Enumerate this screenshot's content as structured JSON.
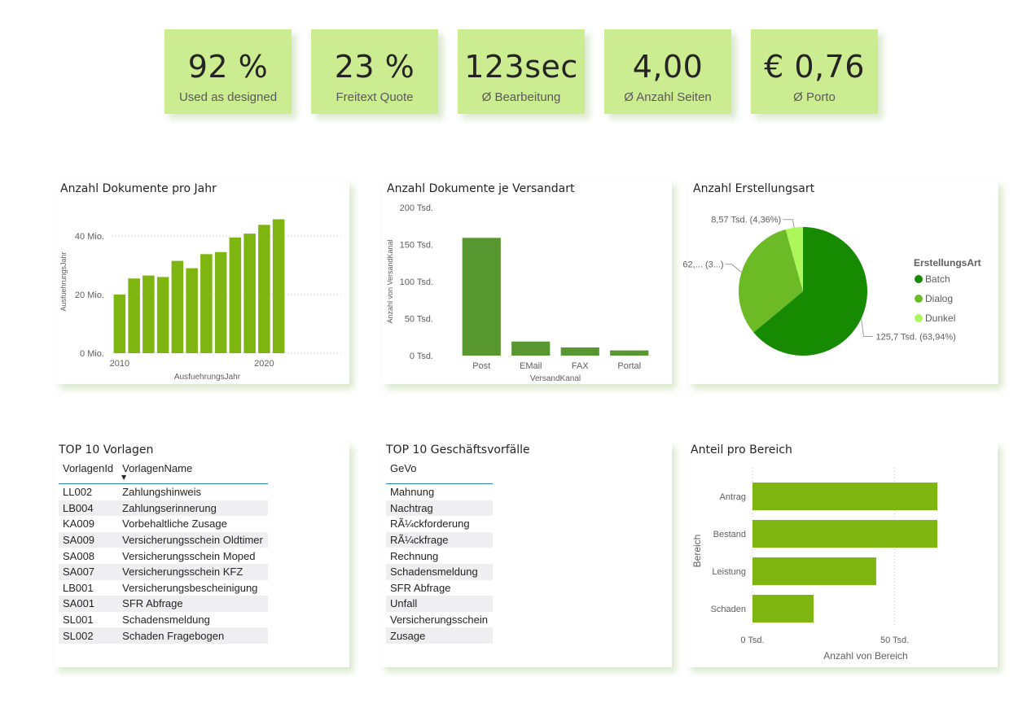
{
  "kpis": [
    {
      "value": "92 %",
      "label": "Used as designed"
    },
    {
      "value": "23 %",
      "label": "Freitext Quote"
    },
    {
      "value": "123sec",
      "label": "Ø Bearbeitung"
    },
    {
      "value": "4,00",
      "label": "Ø Anzahl Seiten"
    },
    {
      "value": "€ 0,76",
      "label": "Ø Porto"
    }
  ],
  "colors": {
    "bar_year": "#7eb510",
    "bar_versand": "#58962f",
    "pie_batch": "#168a00",
    "pie_dialog": "#6cba26",
    "pie_dunkel": "#acf55a",
    "bar_bereich": "#7eb510",
    "kpi_bg": "#ccec91"
  },
  "chart_data": [
    {
      "type": "bar",
      "title": "Anzahl Dokumente pro Jahr",
      "xlabel": "AusfuehrungsJahr",
      "ylabel": "AusfuehrungsJahr",
      "x": [
        2010,
        2011,
        2012,
        2013,
        2014,
        2015,
        2016,
        2017,
        2018,
        2019,
        2020,
        2021
      ],
      "values": [
        20,
        25.5,
        26.5,
        26,
        31.5,
        29,
        33.8,
        34.5,
        39.5,
        40.8,
        43.8,
        45.7
      ],
      "ylim": [
        0,
        50
      ],
      "yticks": [
        {
          "v": 0,
          "label": "0 Mio."
        },
        {
          "v": 20,
          "label": "20 Mio."
        },
        {
          "v": 40,
          "label": "40 Mio."
        }
      ],
      "xticks": [
        {
          "v": 2010,
          "label": "2010"
        },
        {
          "v": 2020,
          "label": "2020"
        }
      ],
      "grid": true
    },
    {
      "type": "bar",
      "title": "Anzahl Dokumente je Versandart",
      "xlabel": "VersandKanal",
      "ylabel": "Anzahl von VersandKanal",
      "categories": [
        "Post",
        "EMail",
        "FAX",
        "Portal"
      ],
      "values": [
        159,
        19,
        11,
        7
      ],
      "ylim": [
        0,
        200
      ],
      "yticks": [
        {
          "v": 0,
          "label": "0 Tsd."
        },
        {
          "v": 50,
          "label": "50 Tsd."
        },
        {
          "v": 100,
          "label": "100 Tsd."
        },
        {
          "v": 150,
          "label": "150 Tsd."
        },
        {
          "v": 200,
          "label": "200 Tsd."
        }
      ],
      "grid": false
    },
    {
      "type": "pie",
      "title": "Anzahl Erstellungsart",
      "legend_title": "ErstellungsArt",
      "legend_position": "right",
      "slices": [
        {
          "name": "Batch",
          "value": 125.7,
          "percent": 63.94,
          "label": "125,7 Tsd. (63,94%)"
        },
        {
          "name": "Dialog",
          "value": 62.3,
          "percent": 31.7,
          "label": "62,... (3...)"
        },
        {
          "name": "Dunkel",
          "value": 8.57,
          "percent": 4.36,
          "label": "8,57 Tsd. (4,36%)"
        }
      ]
    },
    {
      "type": "bar",
      "orientation": "horizontal",
      "title": "Anteil pro Bereich",
      "xlabel": "Anzahl von Bereich",
      "ylabel": "Bereich",
      "categories": [
        "Antrag",
        "Bestand",
        "Leistung",
        "Schaden"
      ],
      "values": [
        65,
        65,
        43.5,
        21.5
      ],
      "xlim": [
        0,
        65
      ],
      "xticks": [
        {
          "v": 0,
          "label": "0 Tsd."
        },
        {
          "v": 50,
          "label": "50 Tsd."
        }
      ],
      "grid": true
    }
  ],
  "vorlagen": {
    "title": "TOP 10 Vorlagen",
    "headers": [
      "VorlagenId",
      "VorlagenName"
    ],
    "rows": [
      [
        "LL002",
        "Zahlungshinweis"
      ],
      [
        "LB004",
        "Zahlungserinnerung"
      ],
      [
        "KA009",
        "Vorbehaltliche Zusage"
      ],
      [
        "SA009",
        "Versicherungsschein Oldtimer"
      ],
      [
        "SA008",
        "Versicherungsschein Moped"
      ],
      [
        "SA007",
        "Versicherungsschein KFZ"
      ],
      [
        "LB001",
        "Versicherungsbescheinigung"
      ],
      [
        "SA001",
        "SFR Abfrage"
      ],
      [
        "SL001",
        "Schadensmeldung"
      ],
      [
        "SL002",
        "Schaden Fragebogen"
      ]
    ]
  },
  "gevo": {
    "title": "TOP 10 Geschäftsvorfälle",
    "header": "GeVo",
    "rows": [
      "Mahnung",
      "Nachtrag",
      "RÃ¼ckforderung",
      "RÃ¼ckfrage",
      "Rechnung",
      "Schadensmeldung",
      "SFR Abfrage",
      "Unfall",
      "Versicherungsschein",
      "Zusage"
    ]
  }
}
